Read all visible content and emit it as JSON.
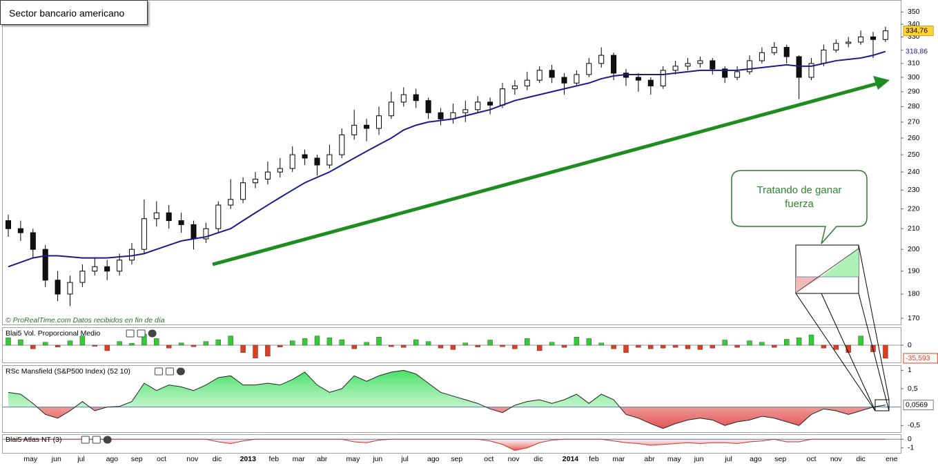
{
  "title": "Sector bancario americano",
  "source": "© ProRealTime.com  Datos recibidos en fin de día",
  "callout": "Tratando de ganar fuerza",
  "chart_data": [
    {
      "type": "candlestick",
      "log_scale": true,
      "ylim": [
        167,
        360
      ],
      "yticks": [
        170,
        180,
        190,
        200,
        210,
        220,
        230,
        240,
        250,
        260,
        270,
        280,
        290,
        300,
        310,
        320,
        330,
        340,
        350
      ],
      "xticks": [
        {
          "value": 1.8,
          "label": "may"
        },
        {
          "value": 3.9,
          "label": "jun"
        },
        {
          "value": 5.9,
          "label": "jul"
        },
        {
          "value": 8.4,
          "label": "ago"
        },
        {
          "value": 10.4,
          "label": "sep"
        },
        {
          "value": 12.4,
          "label": "oct"
        },
        {
          "value": 14.9,
          "label": "nov"
        },
        {
          "value": 16.9,
          "label": "dic"
        },
        {
          "value": 19.4,
          "label": "2013"
        },
        {
          "value": 21.5,
          "label": "feb"
        },
        {
          "value": 23.5,
          "label": "mar"
        },
        {
          "value": 25.4,
          "label": "abr"
        },
        {
          "value": 27.9,
          "label": "may"
        },
        {
          "value": 29.9,
          "label": "jun"
        },
        {
          "value": 32.1,
          "label": "jul"
        },
        {
          "value": 34.4,
          "label": "ago"
        },
        {
          "value": 36.3,
          "label": "sep"
        },
        {
          "value": 38.9,
          "label": "oct"
        },
        {
          "value": 40.9,
          "label": "nov"
        },
        {
          "value": 42.9,
          "label": "dic"
        },
        {
          "value": 45.5,
          "label": "2014"
        },
        {
          "value": 47.4,
          "label": "feb"
        },
        {
          "value": 49.4,
          "label": "mar"
        },
        {
          "value": 51.9,
          "label": "abr"
        },
        {
          "value": 53.9,
          "label": "may"
        },
        {
          "value": 55.9,
          "label": "jun"
        },
        {
          "value": 58.3,
          "label": "jul"
        },
        {
          "value": 60.5,
          "label": "ago"
        },
        {
          "value": 62.5,
          "label": "sep"
        },
        {
          "value": 65.0,
          "label": "oct"
        },
        {
          "value": 67.0,
          "label": "nov"
        },
        {
          "value": 69.0,
          "label": "dic"
        },
        {
          "value": 71.5,
          "label": "ene"
        }
      ],
      "candles": [
        [
          214,
          217,
          206,
          210
        ],
        [
          210,
          214,
          204,
          208
        ],
        [
          208,
          210,
          196,
          200
        ],
        [
          200,
          202,
          183,
          186
        ],
        [
          186,
          190,
          177,
          180
        ],
        [
          180,
          188,
          175,
          185
        ],
        [
          185,
          193,
          183,
          190
        ],
        [
          190,
          196,
          188,
          192
        ],
        [
          192,
          195,
          186,
          190
        ],
        [
          190,
          198,
          188,
          195
        ],
        [
          195,
          203,
          193,
          200
        ],
        [
          200,
          225,
          198,
          215
        ],
        [
          215,
          224,
          211,
          218
        ],
        [
          218,
          222,
          210,
          214
        ],
        [
          214,
          218,
          208,
          212
        ],
        [
          212,
          214,
          200,
          205
        ],
        [
          205,
          213,
          203,
          210
        ],
        [
          210,
          224,
          208,
          222
        ],
        [
          222,
          236,
          220,
          225
        ],
        [
          225,
          237,
          223,
          234
        ],
        [
          234,
          240,
          231,
          236
        ],
        [
          236,
          246,
          233,
          240
        ],
        [
          240,
          248,
          237,
          242
        ],
        [
          242,
          255,
          240,
          250
        ],
        [
          250,
          253,
          244,
          248
        ],
        [
          248,
          250,
          238,
          244
        ],
        [
          244,
          256,
          242,
          250
        ],
        [
          250,
          266,
          248,
          262
        ],
        [
          262,
          278,
          259,
          268
        ],
        [
          268,
          272,
          258,
          266
        ],
        [
          266,
          280,
          262,
          274
        ],
        [
          274,
          290,
          272,
          283
        ],
        [
          283,
          293,
          280,
          288
        ],
        [
          288,
          292,
          279,
          284
        ],
        [
          284,
          286,
          272,
          276
        ],
        [
          276,
          279,
          268,
          272
        ],
        [
          272,
          282,
          269,
          276
        ],
        [
          276,
          284,
          270,
          278
        ],
        [
          278,
          287,
          276,
          283
        ],
        [
          283,
          286,
          275,
          281
        ],
        [
          281,
          296,
          279,
          292
        ],
        [
          292,
          298,
          288,
          294
        ],
        [
          294,
          304,
          291,
          298
        ],
        [
          298,
          308,
          296,
          305
        ],
        [
          305,
          309,
          296,
          300
        ],
        [
          300,
          303,
          288,
          296
        ],
        [
          296,
          305,
          294,
          302
        ],
        [
          302,
          314,
          300,
          310
        ],
        [
          310,
          322,
          307,
          316
        ],
        [
          316,
          318,
          298,
          303
        ],
        [
          303,
          306,
          294,
          300
        ],
        [
          300,
          303,
          290,
          298
        ],
        [
          298,
          300,
          288,
          294
        ],
        [
          294,
          308,
          292,
          305
        ],
        [
          305,
          312,
          302,
          308
        ],
        [
          308,
          314,
          305,
          310
        ],
        [
          310,
          315,
          307,
          312
        ],
        [
          312,
          314,
          302,
          306
        ],
        [
          306,
          308,
          296,
          300
        ],
        [
          300,
          308,
          298,
          304
        ],
        [
          304,
          316,
          302,
          312
        ],
        [
          312,
          322,
          310,
          318
        ],
        [
          318,
          326,
          316,
          322
        ],
        [
          322,
          324,
          310,
          315
        ],
        [
          315,
          316,
          285,
          300
        ],
        [
          300,
          314,
          298,
          310
        ],
        [
          310,
          324,
          308,
          320
        ],
        [
          320,
          328,
          318,
          325
        ],
        [
          325,
          330,
          322,
          326
        ],
        [
          326,
          335,
          324,
          330
        ],
        [
          330,
          334,
          314,
          328
        ],
        [
          328,
          338,
          326,
          334.76
        ]
      ],
      "last_label": "334,76",
      "series": [
        {
          "color": "#1a1a8c",
          "last_label": "318,86",
          "values": [
            192,
            194,
            196,
            197,
            197,
            196.5,
            196,
            196,
            196,
            196.5,
            197,
            198,
            200,
            202,
            204,
            205,
            206,
            208,
            210,
            214,
            218,
            222,
            226,
            230,
            234,
            237,
            240,
            244,
            248,
            252,
            256,
            260,
            265,
            268,
            270,
            271,
            272,
            274,
            276,
            278,
            281,
            284,
            286,
            288,
            290,
            292,
            294,
            296,
            299,
            301,
            302,
            302,
            302,
            302,
            303,
            304,
            305,
            305,
            305,
            305,
            306,
            307,
            308,
            309,
            308,
            308,
            310,
            312,
            313,
            314,
            316,
            318.86
          ]
        }
      ]
    },
    {
      "type": "bar",
      "title": "Blai5 Vol. Proporcional Medio",
      "ylim": [
        -45,
        45
      ],
      "yticks": [
        0
      ],
      "colors": [
        "#33cc33",
        "#e03c1f"
      ],
      "last_label": "-35,593",
      "values": [
        20,
        15,
        -10,
        8,
        -5,
        12,
        25,
        -3,
        -15,
        10,
        5,
        30,
        18,
        -8,
        6,
        -4,
        10,
        15,
        25,
        -20,
        -35,
        -30,
        -5,
        12,
        18,
        25,
        20,
        15,
        -10,
        8,
        22,
        -4,
        -6,
        15,
        10,
        -8,
        -12,
        6,
        -5,
        14,
        -4,
        -10,
        18,
        -15,
        8,
        -6,
        22,
        18,
        6,
        -10,
        -20,
        -6,
        -10,
        -8,
        -6,
        -10,
        -12,
        -8,
        14,
        -6,
        12,
        8,
        -6,
        16,
        20,
        28,
        -8,
        -12,
        -20,
        25,
        -18,
        -35.593
      ]
    },
    {
      "type": "area",
      "title": "RSc Mansfield (S&P500 Index) (52 10)",
      "ylim": [
        -0.7,
        1.1
      ],
      "yticks": [
        1,
        {
          "value": 0.5,
          "label": "0,5"
        },
        {
          "value": -0.5,
          "label": "-0,5"
        }
      ],
      "colors": [
        "#33cc33",
        "#e03c1f"
      ],
      "last_label": "0,0569",
      "values": [
        0.4,
        0.35,
        0.1,
        -0.2,
        -0.3,
        -0.1,
        0.15,
        -0.1,
        0,
        0.02,
        0.15,
        0.65,
        0.45,
        0.6,
        0.55,
        0.45,
        0.6,
        0.8,
        0.85,
        0.6,
        0.6,
        0.65,
        0.6,
        0.75,
        0.95,
        0.6,
        0.4,
        0.5,
        0.85,
        0.7,
        0.85,
        0.95,
        1.0,
        0.9,
        0.65,
        0.4,
        0.3,
        0.2,
        0.1,
        -0.05,
        -0.15,
        0.05,
        0.15,
        0.2,
        0.1,
        0.2,
        0.35,
        0.1,
        0.35,
        0.2,
        -0.2,
        -0.3,
        -0.45,
        -0.58,
        -0.45,
        -0.35,
        -0.3,
        -0.35,
        -0.5,
        -0.4,
        -0.35,
        -0.25,
        -0.3,
        -0.4,
        -0.5,
        -0.2,
        -0.05,
        -0.1,
        -0.2,
        -0.1,
        0.0,
        0.0569
      ]
    },
    {
      "type": "area",
      "title": "Blai5 Atlas NT (3)",
      "ylim": [
        -1.5,
        0.5
      ],
      "yticks": [
        0,
        -1
      ],
      "colors": [
        "#33cc33",
        "#e03c1f"
      ],
      "values": [
        0,
        0,
        0,
        0,
        0,
        0,
        0,
        0,
        0,
        0,
        0,
        0,
        0,
        0,
        0,
        0,
        0,
        -0.3,
        -0.5,
        -0.2,
        0,
        0,
        0,
        0,
        0,
        0,
        0,
        0,
        -0.3,
        -0.4,
        -0.1,
        0,
        0,
        0,
        0,
        0,
        0,
        0,
        0,
        -0.2,
        -0.6,
        -1.3,
        -1.0,
        -0.4,
        -0.1,
        0,
        0,
        0,
        0,
        -0.2,
        -0.4,
        -0.5,
        -0.7,
        -0.6,
        -0.5,
        -0.4,
        -0.5,
        -0.4,
        -0.4,
        -0.5,
        -0.3,
        -0.2,
        0,
        -0.3,
        -0.3,
        0,
        0,
        0,
        0,
        0,
        0,
        0
      ]
    }
  ]
}
